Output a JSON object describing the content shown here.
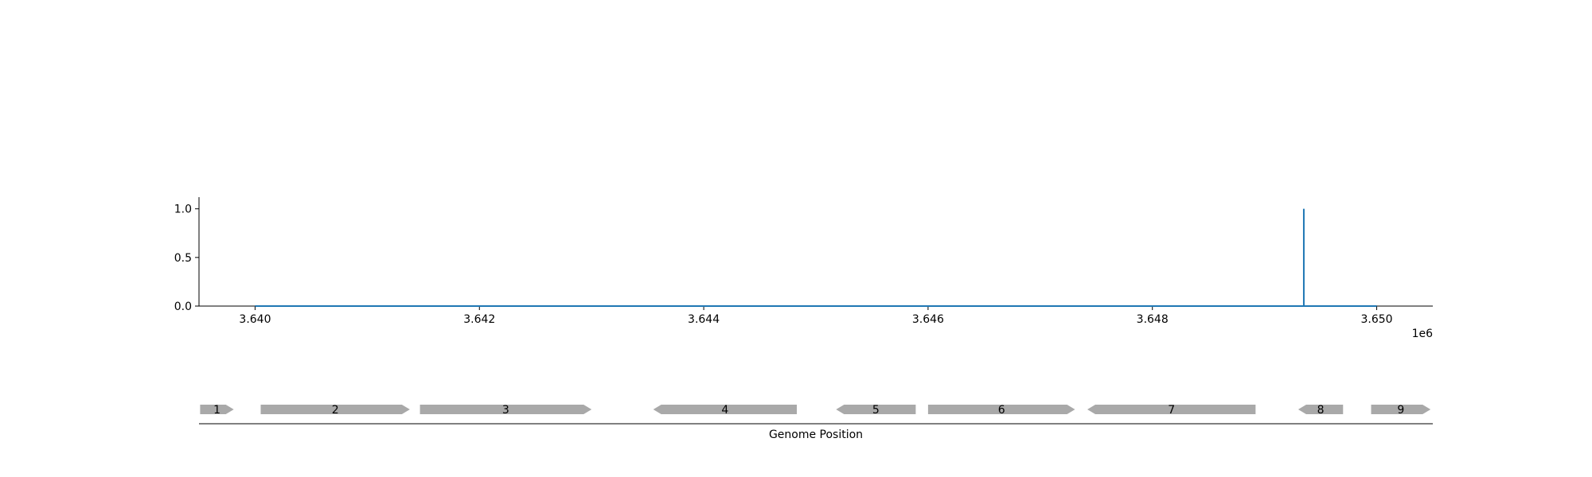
{
  "chart_data": [
    {
      "type": "line",
      "title": "",
      "xlabel": "",
      "ylabel": "",
      "x_offset_label": "1e6",
      "xlim": [
        3.6395,
        3.6505
      ],
      "ylim": [
        0.0,
        1.12
      ],
      "x_ticks": [
        3.64,
        3.642,
        3.644,
        3.646,
        3.648,
        3.65
      ],
      "x_tick_labels": [
        "3.640",
        "3.642",
        "3.644",
        "3.646",
        "3.648",
        "3.650"
      ],
      "y_ticks": [
        0.0,
        0.5,
        1.0
      ],
      "y_tick_labels": [
        "0.0",
        "0.5",
        "1.0"
      ],
      "grid": false,
      "series": [
        {
          "color": "#1f77b4",
          "x": [
            3.64,
            3.64935,
            3.64935,
            3.64935,
            3.65
          ],
          "y": [
            0.0,
            0.0,
            1.0,
            0.0,
            0.0
          ]
        }
      ]
    },
    {
      "type": "gene-track",
      "xlabel": "Genome Position",
      "xlim": [
        3.6395,
        3.6505
      ],
      "gene_color": "#a9a9a9",
      "genes": [
        {
          "label": "1",
          "start": 3.63951,
          "end": 3.63981,
          "strand": "+"
        },
        {
          "label": "2",
          "start": 3.64005,
          "end": 3.64138,
          "strand": "+"
        },
        {
          "label": "3",
          "start": 3.64147,
          "end": 3.643,
          "strand": "+"
        },
        {
          "label": "4",
          "start": 3.64355,
          "end": 3.64483,
          "strand": "-"
        },
        {
          "label": "5",
          "start": 3.64518,
          "end": 3.64589,
          "strand": "-"
        },
        {
          "label": "6",
          "start": 3.646,
          "end": 3.64731,
          "strand": "+"
        },
        {
          "label": "7",
          "start": 3.64742,
          "end": 3.64892,
          "strand": "-"
        },
        {
          "label": "8",
          "start": 3.6493,
          "end": 3.6497,
          "strand": "-"
        },
        {
          "label": "9",
          "start": 3.64995,
          "end": 3.65048,
          "strand": "+"
        }
      ]
    }
  ]
}
